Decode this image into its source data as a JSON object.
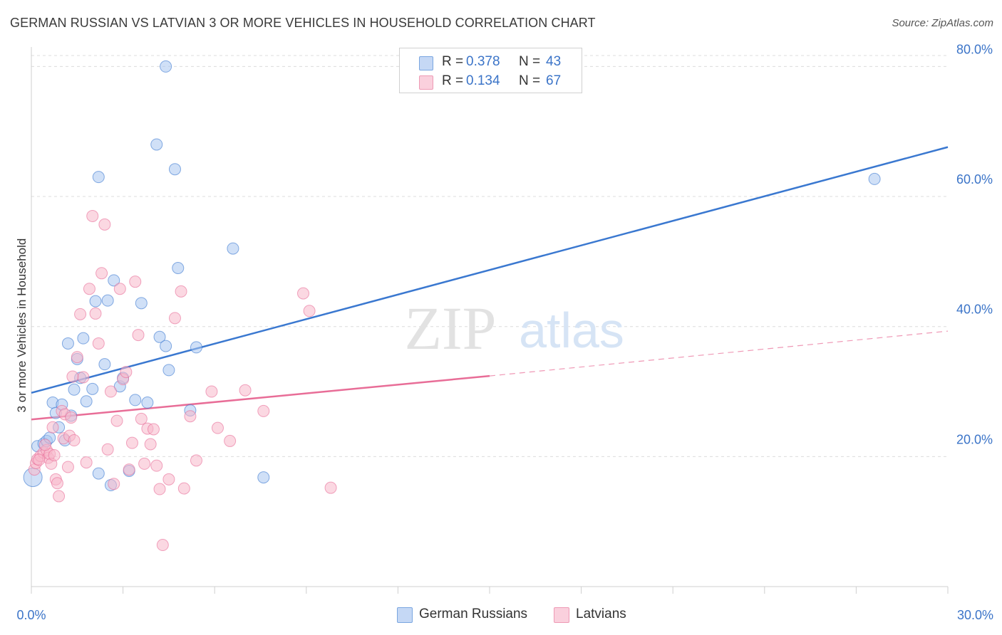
{
  "title": "GERMAN RUSSIAN VS LATVIAN 3 OR MORE VEHICLES IN HOUSEHOLD CORRELATION CHART",
  "source": "Source: ZipAtlas.com",
  "watermark": {
    "zip": "ZIP",
    "atlas": "atlas"
  },
  "legend": {
    "rows": [
      {
        "r_label": "R =",
        "r_value": "0.378",
        "n_label": "N =",
        "n_value": "43",
        "color": "#a9c6f0"
      },
      {
        "r_label": "R =",
        "r_value": "0.134",
        "n_label": "N =",
        "n_value": "67",
        "color": "#f7b8cb"
      }
    ]
  },
  "bottom_legend": [
    {
      "label": "German Russians",
      "color": "#a9c6f0"
    },
    {
      "label": "Latvians",
      "color": "#f7b8cb"
    }
  ],
  "chart_data": {
    "type": "scatter",
    "ylabel": "3 or more Vehicles in Household",
    "xlim": [
      0,
      30
    ],
    "ylim": [
      0,
      83
    ],
    "x_tick_labels": [
      "0.0%",
      "30.0%"
    ],
    "y_ticks": [
      20,
      40,
      60,
      80
    ],
    "y_tick_labels": [
      "20.0%",
      "40.0%",
      "60.0%",
      "80.0%"
    ],
    "grid": "horizontal dashed",
    "series": [
      {
        "name": "German Russians",
        "color": "#3a78d0",
        "fill": "#a9c6f0",
        "trend": {
          "x0": 0,
          "y0": 29.8,
          "x1": 30,
          "y1": 67.6
        },
        "points": [
          [
            0.2,
            21.6
          ],
          [
            0.4,
            22.0
          ],
          [
            0.5,
            22.4
          ],
          [
            0.6,
            22.9
          ],
          [
            0.7,
            28.3
          ],
          [
            0.8,
            26.7
          ],
          [
            0.9,
            24.5
          ],
          [
            1.0,
            28.0
          ],
          [
            1.1,
            22.5
          ],
          [
            1.2,
            37.4
          ],
          [
            1.3,
            26.3
          ],
          [
            1.4,
            30.3
          ],
          [
            1.5,
            35.0
          ],
          [
            1.6,
            32.1
          ],
          [
            1.7,
            38.2
          ],
          [
            1.8,
            28.5
          ],
          [
            2.0,
            30.4
          ],
          [
            2.1,
            43.9
          ],
          [
            2.2,
            17.4
          ],
          [
            2.4,
            34.2
          ],
          [
            2.5,
            44.0
          ],
          [
            2.6,
            15.6
          ],
          [
            2.7,
            47.1
          ],
          [
            2.9,
            30.8
          ],
          [
            3.0,
            32.1
          ],
          [
            3.2,
            17.8
          ],
          [
            3.4,
            28.7
          ],
          [
            3.6,
            43.6
          ],
          [
            3.8,
            28.3
          ],
          [
            4.2,
            38.4
          ],
          [
            4.4,
            37.0
          ],
          [
            4.5,
            33.3
          ],
          [
            4.8,
            49.0
          ],
          [
            5.2,
            27.1
          ],
          [
            5.4,
            36.8
          ],
          [
            6.6,
            52.0
          ],
          [
            7.6,
            16.8
          ],
          [
            2.2,
            63.0
          ],
          [
            4.1,
            68.0
          ],
          [
            4.7,
            64.2
          ],
          [
            4.4,
            80.0
          ],
          [
            27.6,
            62.7
          ],
          [
            0.05,
            16.8
          ]
        ]
      },
      {
        "name": "Latvians",
        "color": "#e86d97",
        "fill": "#f7b8cb",
        "trend": {
          "x0": 0,
          "y0": 25.7,
          "x1": 15,
          "y1": 32.4
        },
        "trend_extension": {
          "x0": 15,
          "y0": 32.4,
          "x1": 30,
          "y1": 39.3
        },
        "points": [
          [
            0.1,
            18.0
          ],
          [
            0.15,
            19.0
          ],
          [
            0.2,
            19.6
          ],
          [
            0.3,
            20.1
          ],
          [
            0.4,
            20.6
          ],
          [
            0.5,
            21.0
          ],
          [
            0.55,
            19.8
          ],
          [
            0.6,
            20.4
          ],
          [
            0.65,
            18.9
          ],
          [
            0.7,
            24.5
          ],
          [
            0.8,
            16.5
          ],
          [
            0.85,
            15.9
          ],
          [
            0.9,
            13.9
          ],
          [
            1.0,
            27.0
          ],
          [
            1.05,
            22.8
          ],
          [
            1.1,
            26.5
          ],
          [
            1.2,
            18.4
          ],
          [
            1.25,
            23.2
          ],
          [
            1.3,
            26.0
          ],
          [
            1.4,
            22.5
          ],
          [
            1.5,
            35.3
          ],
          [
            1.6,
            41.9
          ],
          [
            1.7,
            32.2
          ],
          [
            1.8,
            19.1
          ],
          [
            1.9,
            45.8
          ],
          [
            2.0,
            57.0
          ],
          [
            2.1,
            42.0
          ],
          [
            2.2,
            37.4
          ],
          [
            2.3,
            48.2
          ],
          [
            2.4,
            55.7
          ],
          [
            2.5,
            21.1
          ],
          [
            2.6,
            30.0
          ],
          [
            2.7,
            15.8
          ],
          [
            2.8,
            25.5
          ],
          [
            2.9,
            45.8
          ],
          [
            3.0,
            31.9
          ],
          [
            3.1,
            33.0
          ],
          [
            3.2,
            18.0
          ],
          [
            3.3,
            22.1
          ],
          [
            3.4,
            46.9
          ],
          [
            3.5,
            38.7
          ],
          [
            3.6,
            25.8
          ],
          [
            3.7,
            18.9
          ],
          [
            3.8,
            24.3
          ],
          [
            3.9,
            21.9
          ],
          [
            4.0,
            24.2
          ],
          [
            4.1,
            18.6
          ],
          [
            4.2,
            15.0
          ],
          [
            4.3,
            6.4
          ],
          [
            4.5,
            16.5
          ],
          [
            4.7,
            41.3
          ],
          [
            4.9,
            45.4
          ],
          [
            5.0,
            15.1
          ],
          [
            5.2,
            26.2
          ],
          [
            5.4,
            19.4
          ],
          [
            5.9,
            30.0
          ],
          [
            6.1,
            24.4
          ],
          [
            6.5,
            22.4
          ],
          [
            7.0,
            30.2
          ],
          [
            7.6,
            27.0
          ],
          [
            8.9,
            45.1
          ],
          [
            9.1,
            42.4
          ],
          [
            9.8,
            15.2
          ],
          [
            0.25,
            19.5
          ],
          [
            0.45,
            21.8
          ],
          [
            0.75,
            20.2
          ],
          [
            1.35,
            32.3
          ]
        ]
      }
    ]
  }
}
